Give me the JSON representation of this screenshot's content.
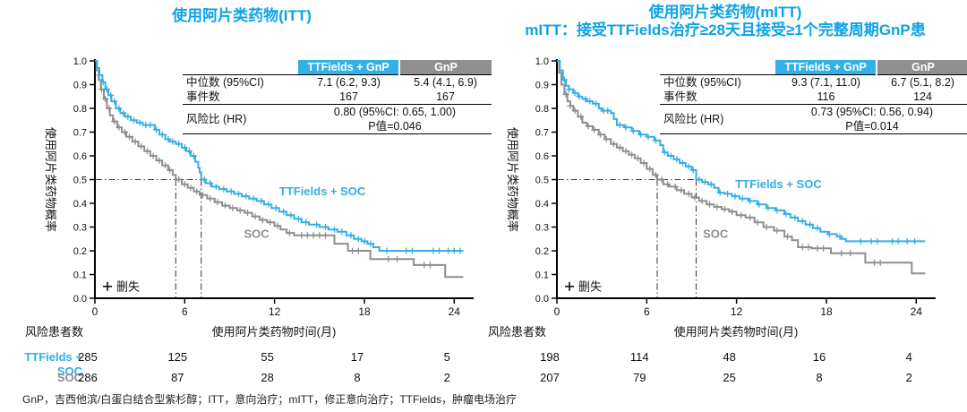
{
  "colors": {
    "title": "#0ba3e6",
    "cyan": "#35ade4",
    "gray": "#8e8e8e",
    "header_cyan": "#33b1e6",
    "header_gray": "#8f8f8f",
    "ref_line": "#444444",
    "axis": "#000000",
    "background": "#ffffff"
  },
  "footer": "GnP，吉西他滨/白蛋白结合型紫杉醇；ITT，意向治疗；mITT，修正意向治疗；TTFields，肿瘤电场治疗",
  "chart_data": [
    {
      "type": "line",
      "subtype": "kaplan-meier",
      "title_lines": [
        "使用阿片类药物(ITT)"
      ],
      "xlabel": "使用阿片类药物时间(月)",
      "ylabel": "使用阿片类药物概率",
      "xlim": [
        0,
        25.3
      ],
      "ylim": [
        0,
        1
      ],
      "xticks": [
        0,
        6,
        12,
        18,
        24
      ],
      "ytick_step": 0.1,
      "censor_legend": "删失",
      "risk_header": "风险患者数",
      "reference_level": 0.5,
      "stats": {
        "headers": [
          "TTFields + GnP",
          "GnP"
        ],
        "rows": [
          {
            "label": "中位数 (95%CI)",
            "v1": "7.1 (6.2, 9.3)",
            "v2": "5.4 (4.1, 6.9)"
          },
          {
            "label": "事件数",
            "v1": "167",
            "v2": "167"
          }
        ],
        "hr_label": "风险比 (HR)",
        "hr_value": "0.80 (95%CI: 0.65, 1.00)",
        "p_value": "P值=0.046"
      },
      "series": [
        {
          "name": "TTFields + SOC",
          "color_key": "cyan",
          "median": 7.1,
          "label_pos": [
            15.2,
            0.45
          ],
          "show_risk_label": true,
          "risk_counts": [
            285,
            125,
            55,
            17,
            5
          ],
          "points": [
            [
              0,
              1
            ],
            [
              0.15,
              0.97
            ],
            [
              0.3,
              0.94
            ],
            [
              0.5,
              0.91
            ],
            [
              0.7,
              0.88
            ],
            [
              0.9,
              0.855
            ],
            [
              1.1,
              0.83
            ],
            [
              1.4,
              0.8
            ],
            [
              1.7,
              0.78
            ],
            [
              2,
              0.765
            ],
            [
              2.4,
              0.75
            ],
            [
              2.8,
              0.74
            ],
            [
              3.2,
              0.73
            ],
            [
              4,
              0.71
            ],
            [
              4.3,
              0.69
            ],
            [
              4.7,
              0.67
            ],
            [
              5,
              0.66
            ],
            [
              5.4,
              0.65
            ],
            [
              5.8,
              0.635
            ],
            [
              6.1,
              0.62
            ],
            [
              6.4,
              0.6
            ],
            [
              6.7,
              0.575
            ],
            [
              6.9,
              0.55
            ],
            [
              7,
              0.53
            ],
            [
              7.1,
              0.5
            ],
            [
              7.4,
              0.485
            ],
            [
              7.8,
              0.47
            ],
            [
              8.3,
              0.46
            ],
            [
              8.8,
              0.45
            ],
            [
              9.3,
              0.44
            ],
            [
              9.8,
              0.43
            ],
            [
              10.3,
              0.42
            ],
            [
              10.8,
              0.41
            ],
            [
              11.3,
              0.395
            ],
            [
              11.8,
              0.38
            ],
            [
              12.3,
              0.365
            ],
            [
              12.8,
              0.35
            ],
            [
              13.3,
              0.335
            ],
            [
              13.8,
              0.32
            ],
            [
              14.3,
              0.31
            ],
            [
              15,
              0.3
            ],
            [
              15.6,
              0.29
            ],
            [
              16.2,
              0.28
            ],
            [
              16.8,
              0.265
            ],
            [
              17.3,
              0.25
            ],
            [
              17.8,
              0.24
            ],
            [
              18.2,
              0.23
            ],
            [
              18.6,
              0.215
            ],
            [
              19,
              0.2
            ],
            [
              24.6,
              0.2
            ]
          ],
          "censors": [
            0.3,
            0.55,
            0.8,
            1.05,
            1.3,
            1.6,
            1.9,
            2.2,
            2.6,
            3,
            3.4,
            3.7,
            4.1,
            4.5,
            4.9,
            5.2,
            5.6,
            6,
            6.3,
            6.6,
            7.3,
            7.7,
            8.1,
            8.6,
            9.1,
            9.6,
            10.1,
            10.6,
            11.1,
            11.6,
            12.1,
            12.6,
            13.1,
            13.6,
            14.1,
            14.8,
            15.4,
            16,
            16.5,
            17.1,
            17.6,
            18,
            18.4,
            19.5,
            20.8,
            21.2,
            22.6,
            23,
            23.6,
            24,
            24.4
          ]
        },
        {
          "name": "SOC",
          "color_key": "gray",
          "median": 5.4,
          "label_pos": [
            10.8,
            0.27
          ],
          "show_risk_label": true,
          "risk_counts": [
            286,
            87,
            28,
            8,
            2
          ],
          "points": [
            [
              0,
              1
            ],
            [
              0.1,
              0.96
            ],
            [
              0.25,
              0.92
            ],
            [
              0.4,
              0.88
            ],
            [
              0.6,
              0.84
            ],
            [
              0.8,
              0.8
            ],
            [
              1,
              0.77
            ],
            [
              1.2,
              0.745
            ],
            [
              1.5,
              0.72
            ],
            [
              1.8,
              0.7
            ],
            [
              2.1,
              0.68
            ],
            [
              2.5,
              0.66
            ],
            [
              2.9,
              0.64
            ],
            [
              3.3,
              0.62
            ],
            [
              3.7,
              0.6
            ],
            [
              4.1,
              0.58
            ],
            [
              4.5,
              0.56
            ],
            [
              4.9,
              0.54
            ],
            [
              5.2,
              0.52
            ],
            [
              5.4,
              0.5
            ],
            [
              5.8,
              0.48
            ],
            [
              6.2,
              0.465
            ],
            [
              6.6,
              0.45
            ],
            [
              7,
              0.435
            ],
            [
              7.5,
              0.42
            ],
            [
              8,
              0.405
            ],
            [
              8.5,
              0.39
            ],
            [
              9,
              0.38
            ],
            [
              9.5,
              0.37
            ],
            [
              10,
              0.36
            ],
            [
              10.5,
              0.345
            ],
            [
              11,
              0.33
            ],
            [
              11.5,
              0.32
            ],
            [
              12,
              0.305
            ],
            [
              12.4,
              0.29
            ],
            [
              12.8,
              0.275
            ],
            [
              13.3,
              0.265
            ],
            [
              16,
              0.23
            ],
            [
              16.9,
              0.2
            ],
            [
              18.4,
              0.165
            ],
            [
              21.3,
              0.14
            ],
            [
              23.4,
              0.09
            ],
            [
              24.6,
              0.09
            ]
          ],
          "censors": [
            0.45,
            0.7,
            0.95,
            1.3,
            1.6,
            2,
            2.3,
            2.7,
            3.1,
            3.5,
            3.9,
            4.3,
            4.7,
            5,
            5.6,
            6,
            6.4,
            6.8,
            7.2,
            7.7,
            8.2,
            8.7,
            9.2,
            9.7,
            10.2,
            10.7,
            11.2,
            11.7,
            12.2,
            13,
            13.8,
            14.2,
            14.6,
            15,
            15.4,
            17.2,
            17.6,
            19.6,
            20.2,
            22,
            22.4
          ]
        }
      ]
    },
    {
      "type": "line",
      "subtype": "kaplan-meier",
      "title_lines": [
        "使用阿片类药物(mITT)",
        "mITT：接受TTFields治疗≥28天且接受≥1个完整周期GnP患"
      ],
      "xlabel": "使用阿片类药物时间(月)",
      "ylabel": "使用阿片类药物概率",
      "xlim": [
        0,
        25.3
      ],
      "ylim": [
        0,
        1
      ],
      "xticks": [
        0,
        6,
        12,
        18,
        24
      ],
      "ytick_step": 0.1,
      "censor_legend": "删失",
      "risk_header": "风险患者数",
      "reference_level": 0.5,
      "stats": {
        "headers": [
          "TTFields + GnP",
          "GnP"
        ],
        "rows": [
          {
            "label": "中位数 (95%CI)",
            "v1": "9.3 (7.1, 11.0)",
            "v2": "6.7 (5.1, 8.2)"
          },
          {
            "label": "事件数",
            "v1": "116",
            "v2": "124"
          }
        ],
        "hr_label": "风险比 (HR)",
        "hr_value": "0.73 (95%CI: 0.56, 0.94)",
        "p_value": "P值=0.014"
      },
      "series": [
        {
          "name": "TTFields + SOC",
          "color_key": "cyan",
          "median": 9.3,
          "label_pos": [
            14.8,
            0.48
          ],
          "show_risk_label": false,
          "risk_counts": [
            198,
            114,
            48,
            16,
            4
          ],
          "points": [
            [
              0,
              1
            ],
            [
              0.2,
              0.96
            ],
            [
              0.4,
              0.92
            ],
            [
              0.6,
              0.895
            ],
            [
              0.8,
              0.88
            ],
            [
              1.1,
              0.865
            ],
            [
              1.4,
              0.85
            ],
            [
              1.7,
              0.84
            ],
            [
              2,
              0.83
            ],
            [
              2.4,
              0.82
            ],
            [
              2.8,
              0.8
            ],
            [
              3,
              0.79
            ],
            [
              3.6,
              0.78
            ],
            [
              3.8,
              0.755
            ],
            [
              4,
              0.73
            ],
            [
              4.5,
              0.72
            ],
            [
              5,
              0.705
            ],
            [
              5.5,
              0.69
            ],
            [
              6,
              0.68
            ],
            [
              6.5,
              0.665
            ],
            [
              6.9,
              0.645
            ],
            [
              7.1,
              0.615
            ],
            [
              7.4,
              0.6
            ],
            [
              7.8,
              0.585
            ],
            [
              8.2,
              0.57
            ],
            [
              8.6,
              0.555
            ],
            [
              9,
              0.54
            ],
            [
              9.3,
              0.5
            ],
            [
              9.7,
              0.49
            ],
            [
              10.1,
              0.48
            ],
            [
              10.5,
              0.465
            ],
            [
              10.8,
              0.445
            ],
            [
              11.2,
              0.44
            ],
            [
              11.7,
              0.43
            ],
            [
              12.2,
              0.42
            ],
            [
              12.8,
              0.41
            ],
            [
              13.4,
              0.395
            ],
            [
              14,
              0.38
            ],
            [
              14.6,
              0.37
            ],
            [
              15.2,
              0.355
            ],
            [
              15.6,
              0.34
            ],
            [
              16.1,
              0.325
            ],
            [
              16.6,
              0.31
            ],
            [
              17.1,
              0.295
            ],
            [
              17.6,
              0.28
            ],
            [
              18.1,
              0.27
            ],
            [
              18.7,
              0.26
            ],
            [
              19,
              0.25
            ],
            [
              19.3,
              0.24
            ],
            [
              24.6,
              0.24
            ]
          ],
          "censors": [
            0.5,
            0.8,
            1.2,
            1.5,
            1.9,
            2.2,
            2.6,
            3.1,
            3.4,
            4.2,
            4.6,
            5.1,
            5.6,
            6.1,
            6.6,
            7.2,
            7.6,
            8,
            8.4,
            8.8,
            9.1,
            9.5,
            9.9,
            10.3,
            10.9,
            11.4,
            11.9,
            12.4,
            12.9,
            13.5,
            14.1,
            14.7,
            15.3,
            15.9,
            16.4,
            16.9,
            17.4,
            18.2,
            18.9,
            20.3,
            21,
            21.4,
            22.4,
            22.8,
            23.4,
            23.9
          ]
        },
        {
          "name": "SOC",
          "color_key": "gray",
          "median": 6.7,
          "label_pos": [
            10.6,
            0.27
          ],
          "show_risk_label": false,
          "risk_counts": [
            207,
            79,
            25,
            8,
            2
          ],
          "points": [
            [
              0,
              1
            ],
            [
              0.15,
              0.95
            ],
            [
              0.3,
              0.9
            ],
            [
              0.5,
              0.86
            ],
            [
              0.7,
              0.83
            ],
            [
              0.9,
              0.81
            ],
            [
              1.1,
              0.79
            ],
            [
              1.4,
              0.765
            ],
            [
              1.7,
              0.74
            ],
            [
              2,
              0.725
            ],
            [
              2.4,
              0.71
            ],
            [
              2.8,
              0.69
            ],
            [
              3.2,
              0.67
            ],
            [
              3.6,
              0.65
            ],
            [
              4,
              0.635
            ],
            [
              4.4,
              0.62
            ],
            [
              4.8,
              0.605
            ],
            [
              5.2,
              0.59
            ],
            [
              5.6,
              0.57
            ],
            [
              6,
              0.545
            ],
            [
              6.4,
              0.52
            ],
            [
              6.7,
              0.5
            ],
            [
              7.1,
              0.48
            ],
            [
              7.5,
              0.47
            ],
            [
              8,
              0.455
            ],
            [
              8.5,
              0.44
            ],
            [
              9,
              0.425
            ],
            [
              9.5,
              0.41
            ],
            [
              10,
              0.395
            ],
            [
              10.5,
              0.385
            ],
            [
              11,
              0.375
            ],
            [
              11.5,
              0.365
            ],
            [
              12,
              0.35
            ],
            [
              12.6,
              0.34
            ],
            [
              13.2,
              0.32
            ],
            [
              13.8,
              0.3
            ],
            [
              14.5,
              0.285
            ],
            [
              15.2,
              0.26
            ],
            [
              15.7,
              0.245
            ],
            [
              16.1,
              0.215
            ],
            [
              17,
              0.21
            ],
            [
              18.3,
              0.19
            ],
            [
              20.6,
              0.15
            ],
            [
              23.7,
              0.105
            ],
            [
              24.6,
              0.105
            ]
          ],
          "censors": [
            0.6,
            0.9,
            1.2,
            1.6,
            2.1,
            2.5,
            2.9,
            3.3,
            3.8,
            4.2,
            4.6,
            5,
            5.4,
            5.8,
            6.2,
            6.6,
            7,
            7.4,
            7.9,
            8.3,
            8.8,
            9.2,
            9.7,
            10.2,
            10.7,
            11.2,
            11.7,
            12.3,
            12.9,
            13.4,
            14,
            14.7,
            15.4,
            16.4,
            16.8,
            17.4,
            17.8,
            19,
            19.6,
            21.2,
            21.6
          ]
        }
      ]
    }
  ]
}
